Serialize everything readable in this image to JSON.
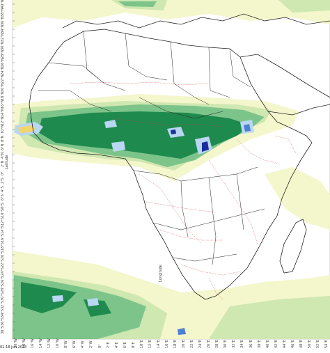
{
  "map": {
    "y_axis_title": "Latitude",
    "x_axis_title": "Longitude",
    "date_stamp": "01-18 Jun 2013",
    "lat_ticks": [
      "40°N",
      "38°N",
      "36°N",
      "34°N",
      "32°N",
      "30°N",
      "28°N",
      "26°N",
      "24°N",
      "22°N",
      "20°N",
      "18°N",
      "16°N",
      "14°N",
      "12°N",
      "10°N",
      "8°N",
      "6°N",
      "4°N",
      "2°N",
      "0°",
      "2°S",
      "4°S",
      "6°S",
      "8°S",
      "10°S",
      "12°S",
      "14°S",
      "16°S",
      "18°S",
      "20°S",
      "22°S",
      "24°S",
      "26°S",
      "28°S",
      "30°S",
      "32°S",
      "34°S",
      "36°S",
      "38°S"
    ],
    "lon_ticks": [
      "20°W",
      "18°W",
      "16°W",
      "14°W",
      "12°W",
      "10°W",
      "8°W",
      "6°W",
      "4°W",
      "2°W",
      "0°",
      "2°E",
      "4°E",
      "6°E",
      "8°E",
      "10°E",
      "12°E",
      "14°E",
      "16°E",
      "18°E",
      "20°E",
      "22°E",
      "24°E",
      "26°E",
      "28°E",
      "30°E",
      "32°E",
      "34°E",
      "36°E",
      "38°E",
      "40°E",
      "42°E",
      "44°E",
      "46°E",
      "48°E",
      "50°E",
      "52°E",
      "54°E"
    ],
    "colors": {
      "ocean": "#ffffff",
      "land": "#ffffff",
      "light_rain": "#f4f6cc",
      "light_green": "#cfe7b0",
      "medium_green": "#7cc48a",
      "dark_green": "#1f8a4e",
      "light_blue": "#b9d7f2",
      "blue": "#4f7fd0",
      "dark_blue": "#1b2f9c",
      "yellow": "#f2d46e",
      "border": "#222222",
      "admin_border": "#cc3333"
    }
  }
}
